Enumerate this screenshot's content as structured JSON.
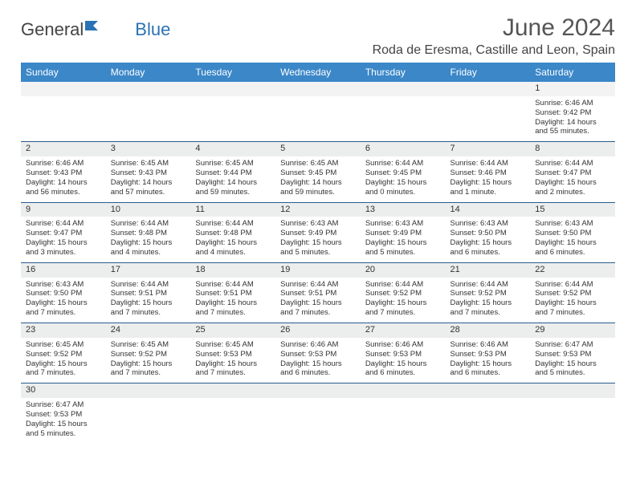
{
  "brand": {
    "part1": "General",
    "part2": "Blue"
  },
  "title": "June 2024",
  "location": "Roda de Eresma, Castille and Leon, Spain",
  "colors": {
    "header_bg": "#3b87c8",
    "header_text": "#ffffff",
    "daynum_bg": "#eceded",
    "cell_border": "#2a5d8f",
    "logo_blue": "#2a72b5"
  },
  "day_headers": [
    "Sunday",
    "Monday",
    "Tuesday",
    "Wednesday",
    "Thursday",
    "Friday",
    "Saturday"
  ],
  "weeks": [
    {
      "nums": [
        "",
        "",
        "",
        "",
        "",
        "",
        "1"
      ],
      "cells": [
        null,
        null,
        null,
        null,
        null,
        null,
        {
          "sr": "Sunrise: 6:46 AM",
          "ss": "Sunset: 9:42 PM",
          "dl": "Daylight: 14 hours and 55 minutes."
        }
      ]
    },
    {
      "nums": [
        "2",
        "3",
        "4",
        "5",
        "6",
        "7",
        "8"
      ],
      "cells": [
        {
          "sr": "Sunrise: 6:46 AM",
          "ss": "Sunset: 9:43 PM",
          "dl": "Daylight: 14 hours and 56 minutes."
        },
        {
          "sr": "Sunrise: 6:45 AM",
          "ss": "Sunset: 9:43 PM",
          "dl": "Daylight: 14 hours and 57 minutes."
        },
        {
          "sr": "Sunrise: 6:45 AM",
          "ss": "Sunset: 9:44 PM",
          "dl": "Daylight: 14 hours and 59 minutes."
        },
        {
          "sr": "Sunrise: 6:45 AM",
          "ss": "Sunset: 9:45 PM",
          "dl": "Daylight: 14 hours and 59 minutes."
        },
        {
          "sr": "Sunrise: 6:44 AM",
          "ss": "Sunset: 9:45 PM",
          "dl": "Daylight: 15 hours and 0 minutes."
        },
        {
          "sr": "Sunrise: 6:44 AM",
          "ss": "Sunset: 9:46 PM",
          "dl": "Daylight: 15 hours and 1 minute."
        },
        {
          "sr": "Sunrise: 6:44 AM",
          "ss": "Sunset: 9:47 PM",
          "dl": "Daylight: 15 hours and 2 minutes."
        }
      ]
    },
    {
      "nums": [
        "9",
        "10",
        "11",
        "12",
        "13",
        "14",
        "15"
      ],
      "cells": [
        {
          "sr": "Sunrise: 6:44 AM",
          "ss": "Sunset: 9:47 PM",
          "dl": "Daylight: 15 hours and 3 minutes."
        },
        {
          "sr": "Sunrise: 6:44 AM",
          "ss": "Sunset: 9:48 PM",
          "dl": "Daylight: 15 hours and 4 minutes."
        },
        {
          "sr": "Sunrise: 6:44 AM",
          "ss": "Sunset: 9:48 PM",
          "dl": "Daylight: 15 hours and 4 minutes."
        },
        {
          "sr": "Sunrise: 6:43 AM",
          "ss": "Sunset: 9:49 PM",
          "dl": "Daylight: 15 hours and 5 minutes."
        },
        {
          "sr": "Sunrise: 6:43 AM",
          "ss": "Sunset: 9:49 PM",
          "dl": "Daylight: 15 hours and 5 minutes."
        },
        {
          "sr": "Sunrise: 6:43 AM",
          "ss": "Sunset: 9:50 PM",
          "dl": "Daylight: 15 hours and 6 minutes."
        },
        {
          "sr": "Sunrise: 6:43 AM",
          "ss": "Sunset: 9:50 PM",
          "dl": "Daylight: 15 hours and 6 minutes."
        }
      ]
    },
    {
      "nums": [
        "16",
        "17",
        "18",
        "19",
        "20",
        "21",
        "22"
      ],
      "cells": [
        {
          "sr": "Sunrise: 6:43 AM",
          "ss": "Sunset: 9:50 PM",
          "dl": "Daylight: 15 hours and 7 minutes."
        },
        {
          "sr": "Sunrise: 6:44 AM",
          "ss": "Sunset: 9:51 PM",
          "dl": "Daylight: 15 hours and 7 minutes."
        },
        {
          "sr": "Sunrise: 6:44 AM",
          "ss": "Sunset: 9:51 PM",
          "dl": "Daylight: 15 hours and 7 minutes."
        },
        {
          "sr": "Sunrise: 6:44 AM",
          "ss": "Sunset: 9:51 PM",
          "dl": "Daylight: 15 hours and 7 minutes."
        },
        {
          "sr": "Sunrise: 6:44 AM",
          "ss": "Sunset: 9:52 PM",
          "dl": "Daylight: 15 hours and 7 minutes."
        },
        {
          "sr": "Sunrise: 6:44 AM",
          "ss": "Sunset: 9:52 PM",
          "dl": "Daylight: 15 hours and 7 minutes."
        },
        {
          "sr": "Sunrise: 6:44 AM",
          "ss": "Sunset: 9:52 PM",
          "dl": "Daylight: 15 hours and 7 minutes."
        }
      ]
    },
    {
      "nums": [
        "23",
        "24",
        "25",
        "26",
        "27",
        "28",
        "29"
      ],
      "cells": [
        {
          "sr": "Sunrise: 6:45 AM",
          "ss": "Sunset: 9:52 PM",
          "dl": "Daylight: 15 hours and 7 minutes."
        },
        {
          "sr": "Sunrise: 6:45 AM",
          "ss": "Sunset: 9:52 PM",
          "dl": "Daylight: 15 hours and 7 minutes."
        },
        {
          "sr": "Sunrise: 6:45 AM",
          "ss": "Sunset: 9:53 PM",
          "dl": "Daylight: 15 hours and 7 minutes."
        },
        {
          "sr": "Sunrise: 6:46 AM",
          "ss": "Sunset: 9:53 PM",
          "dl": "Daylight: 15 hours and 6 minutes."
        },
        {
          "sr": "Sunrise: 6:46 AM",
          "ss": "Sunset: 9:53 PM",
          "dl": "Daylight: 15 hours and 6 minutes."
        },
        {
          "sr": "Sunrise: 6:46 AM",
          "ss": "Sunset: 9:53 PM",
          "dl": "Daylight: 15 hours and 6 minutes."
        },
        {
          "sr": "Sunrise: 6:47 AM",
          "ss": "Sunset: 9:53 PM",
          "dl": "Daylight: 15 hours and 5 minutes."
        }
      ]
    },
    {
      "nums": [
        "30",
        "",
        "",
        "",
        "",
        "",
        ""
      ],
      "cells": [
        {
          "sr": "Sunrise: 6:47 AM",
          "ss": "Sunset: 9:53 PM",
          "dl": "Daylight: 15 hours and 5 minutes."
        },
        null,
        null,
        null,
        null,
        null,
        null
      ]
    }
  ]
}
